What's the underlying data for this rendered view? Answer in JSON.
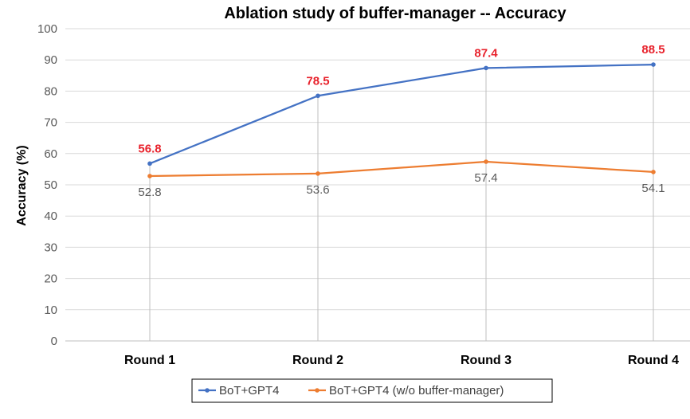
{
  "chart_data": {
    "type": "line",
    "title": "Ablation study of buffer-manager -- Accuracy",
    "xlabel": "",
    "ylabel": "Accuracy (%)",
    "categories": [
      "Round 1",
      "Round 2",
      "Round 3",
      "Round 4"
    ],
    "ylim": [
      0,
      100
    ],
    "yticks": [
      0,
      10,
      20,
      30,
      40,
      50,
      60,
      70,
      80,
      90,
      100
    ],
    "grid": true,
    "legend_position": "bottom",
    "series": [
      {
        "name": "BoT+GPT4",
        "values": [
          56.8,
          78.5,
          87.4,
          88.5
        ],
        "color": "#4472C4",
        "label_color": "#E8222C",
        "labels": [
          "56.8",
          "78.5",
          "87.4",
          "88.5"
        ]
      },
      {
        "name": "BoT+GPT4 (w/o buffer-manager)",
        "values": [
          52.8,
          53.6,
          57.4,
          54.1
        ],
        "color": "#ED7D31",
        "label_color": "#595959",
        "labels": [
          "52.8",
          "53.6",
          "57.4",
          "54.1"
        ]
      }
    ]
  }
}
